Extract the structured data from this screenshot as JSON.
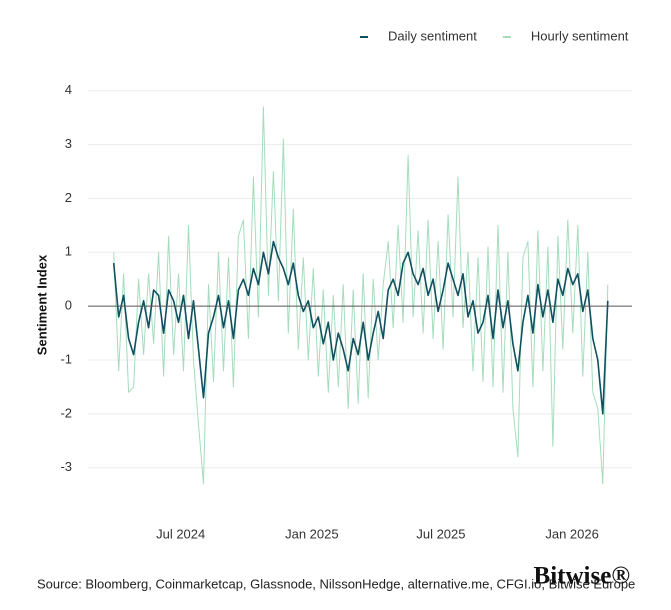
{
  "chart_data": {
    "type": "line",
    "y_label": "Sentiment Index",
    "source": "Source: Bloomberg, Coinmarketcap, Glassnode, NilssonHedge, alternative.me, CFGI.io, Bitwise Europe",
    "brand": "Bitwise®",
    "legend_position": "top-right",
    "grid": true,
    "xlim": [
      52,
      815
    ],
    "xticks": [
      {
        "value": 182,
        "label": "Jul 2024"
      },
      {
        "value": 366,
        "label": "Jan 2025"
      },
      {
        "value": 547,
        "label": "Jul 2025"
      },
      {
        "value": 731,
        "label": "Jan 2026"
      }
    ],
    "ylim": [
      -3.6,
      4.2
    ],
    "yticks": [
      -3,
      -2,
      -1,
      0,
      1,
      2,
      3,
      4
    ],
    "x": [
      88,
      95,
      102,
      109,
      116,
      123,
      130,
      137,
      144,
      151,
      158,
      165,
      172,
      179,
      186,
      193,
      200,
      207,
      214,
      221,
      228,
      235,
      242,
      249,
      256,
      263,
      270,
      277,
      284,
      291,
      298,
      305,
      312,
      319,
      326,
      333,
      340,
      347,
      354,
      361,
      368,
      375,
      382,
      389,
      396,
      403,
      410,
      417,
      424,
      431,
      438,
      445,
      452,
      459,
      466,
      473,
      480,
      487,
      494,
      501,
      508,
      515,
      522,
      529,
      536,
      543,
      550,
      557,
      564,
      571,
      578,
      585,
      592,
      599,
      606,
      613,
      620,
      627,
      634,
      641,
      648,
      655,
      662,
      669,
      676,
      683,
      690,
      697,
      704,
      711,
      718,
      725,
      732,
      739,
      746,
      753,
      760,
      767,
      774,
      781
    ],
    "series": [
      {
        "name": "Hourly sentiment",
        "color": "#a6dcbd",
        "width": 1,
        "values": [
          1.0,
          -1.2,
          0.6,
          -1.6,
          -1.5,
          0.5,
          -0.9,
          0.6,
          -0.7,
          1.0,
          -1.3,
          1.3,
          -0.9,
          0.6,
          -1.2,
          1.5,
          -1.0,
          -2.2,
          -3.3,
          0.4,
          -1.4,
          1.0,
          -1.2,
          0.9,
          -1.5,
          1.3,
          1.6,
          -0.6,
          2.4,
          -0.2,
          3.7,
          0.2,
          2.5,
          0.1,
          3.1,
          -0.5,
          1.8,
          -0.8,
          0.9,
          -1.0,
          0.7,
          -1.3,
          0.3,
          -1.6,
          0.2,
          -1.5,
          0.4,
          -1.9,
          0.3,
          -1.8,
          0.6,
          -1.7,
          0.5,
          -1.0,
          0.4,
          1.2,
          -0.4,
          1.5,
          -0.3,
          2.8,
          -0.2,
          1.4,
          -0.5,
          1.6,
          -0.6,
          1.2,
          -0.8,
          1.7,
          -0.2,
          2.4,
          -0.4,
          1.0,
          -1.2,
          0.9,
          -1.4,
          1.1,
          -1.5,
          1.5,
          -1.6,
          1.0,
          -1.9,
          -2.8,
          0.9,
          1.2,
          -1.5,
          1.4,
          -1.2,
          1.1,
          -2.6,
          1.3,
          -0.8,
          1.6,
          -0.5,
          1.5,
          -1.3,
          1.0,
          -1.6,
          -1.9,
          -3.3,
          0.4
        ]
      },
      {
        "name": "Daily sentiment",
        "color": "#0f5160",
        "width": 1.6,
        "values": [
          0.8,
          -0.2,
          0.2,
          -0.6,
          -0.9,
          -0.3,
          0.1,
          -0.4,
          0.3,
          0.2,
          -0.5,
          0.3,
          0.1,
          -0.3,
          0.2,
          -0.6,
          0.1,
          -0.8,
          -1.7,
          -0.5,
          -0.2,
          0.2,
          -0.4,
          0.1,
          -0.6,
          0.3,
          0.5,
          0.2,
          0.7,
          0.4,
          1.0,
          0.6,
          1.2,
          0.9,
          0.7,
          0.4,
          0.8,
          0.2,
          -0.1,
          0.1,
          -0.4,
          -0.2,
          -0.7,
          -0.3,
          -1.0,
          -0.5,
          -0.8,
          -1.2,
          -0.6,
          -0.9,
          -0.3,
          -1.0,
          -0.5,
          -0.1,
          -0.6,
          0.3,
          0.5,
          0.2,
          0.8,
          1.0,
          0.6,
          0.4,
          0.7,
          0.2,
          0.5,
          -0.1,
          0.3,
          0.8,
          0.5,
          0.2,
          0.6,
          -0.2,
          0.1,
          -0.5,
          -0.3,
          0.2,
          -0.6,
          0.3,
          -0.4,
          0.1,
          -0.7,
          -1.2,
          -0.3,
          0.2,
          -0.5,
          0.4,
          -0.2,
          0.3,
          -0.3,
          0.5,
          0.2,
          0.7,
          0.4,
          0.6,
          -0.1,
          0.3,
          -0.6,
          -1.0,
          -2.0,
          0.1
        ]
      }
    ]
  }
}
